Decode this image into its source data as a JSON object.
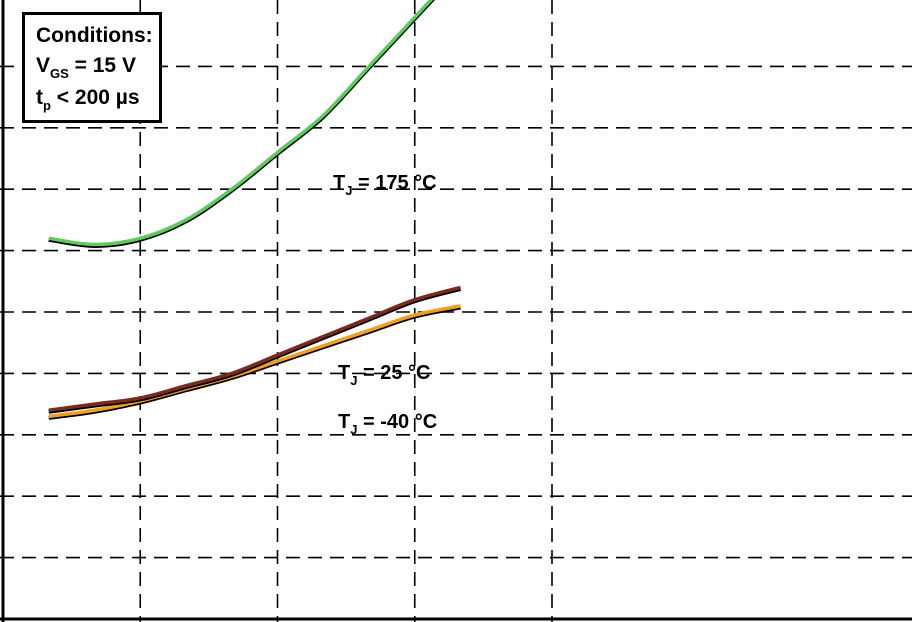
{
  "conditions": {
    "title": "Conditions:",
    "line1": {
      "main": "V",
      "sub": "GS",
      "rest": " = 15 V"
    },
    "line2": {
      "main": "t",
      "sub": "p",
      "rest": " < 200 µs"
    }
  },
  "labels": {
    "tj175": {
      "main": "T",
      "sub": "J",
      "rest": " = 175 °C"
    },
    "tj25": {
      "main": "T",
      "sub": "J",
      "rest": " = 25 °C"
    },
    "tjm40": {
      "main": "T",
      "sub": "J",
      "rest": " = -40 °C"
    }
  },
  "colors": {
    "t175": "#5ecb5e",
    "t25": "#7a2a1e",
    "tm40": "#f0a020",
    "grid": "#000000"
  },
  "chart_data": {
    "type": "line",
    "title": "",
    "xlabel": "",
    "ylabel": "",
    "xlim": [
      0,
      10
    ],
    "ylim": [
      0,
      10
    ],
    "grid": true,
    "legend": "inline labels",
    "series": [
      {
        "name": "TJ = 175 °C",
        "x": [
          0.5,
          1,
          1.5,
          2,
          2.5,
          3,
          3.5,
          4,
          4.5,
          5
        ],
        "y": [
          6.2,
          6.1,
          6.2,
          6.5,
          7.0,
          7.6,
          8.2,
          9.0,
          9.8,
          10.6
        ]
      },
      {
        "name": "TJ = 25 °C",
        "x": [
          0.5,
          1,
          1.5,
          2,
          2.5,
          3,
          3.5,
          4,
          4.5,
          5
        ],
        "y": [
          3.4,
          3.5,
          3.6,
          3.8,
          4.0,
          4.3,
          4.6,
          4.9,
          5.2,
          5.4
        ]
      },
      {
        "name": "TJ = -40 °C",
        "x": [
          0.5,
          1,
          1.5,
          2,
          2.5,
          3,
          3.5,
          4,
          4.5,
          5
        ],
        "y": [
          3.3,
          3.4,
          3.55,
          3.75,
          3.95,
          4.2,
          4.45,
          4.7,
          4.95,
          5.1
        ]
      }
    ]
  }
}
